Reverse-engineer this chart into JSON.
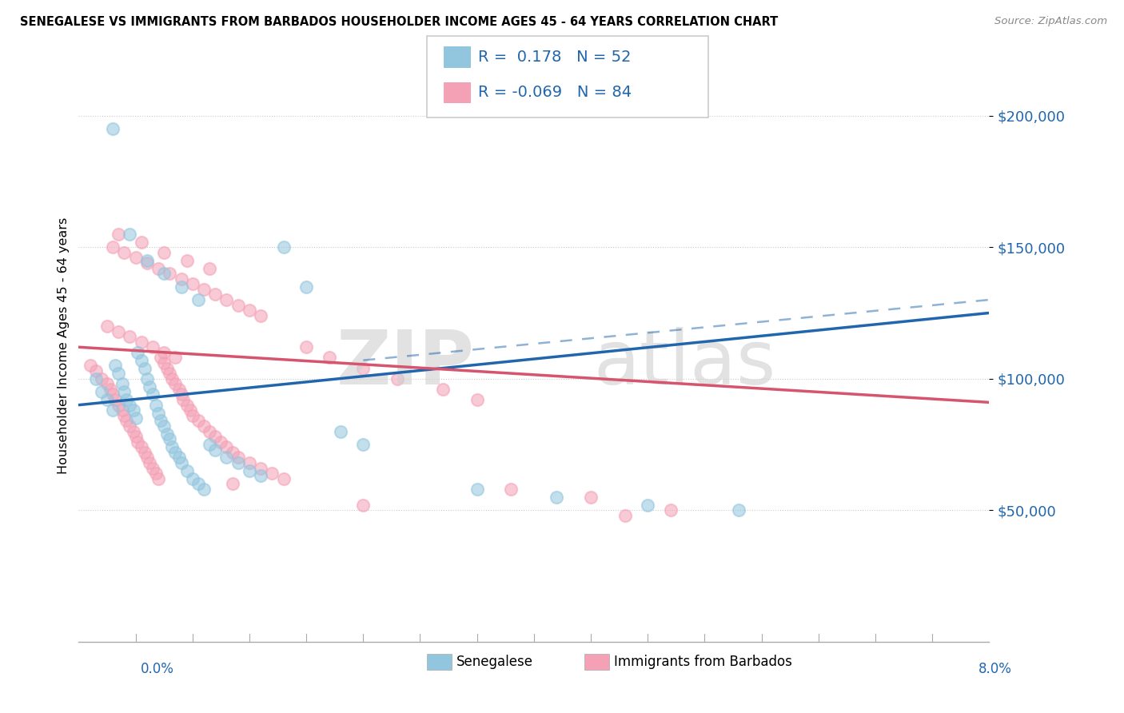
{
  "title": "SENEGALESE VS IMMIGRANTS FROM BARBADOS HOUSEHOLDER INCOME AGES 45 - 64 YEARS CORRELATION CHART",
  "source": "Source: ZipAtlas.com",
  "ylabel": "Householder Income Ages 45 - 64 years",
  "xlim": [
    0.0,
    8.0
  ],
  "ylim": [
    0,
    225000
  ],
  "yticks": [
    50000,
    100000,
    150000,
    200000
  ],
  "ytick_labels": [
    "$50,000",
    "$100,000",
    "$150,000",
    "$200,000"
  ],
  "color_blue": "#92c5de",
  "color_pink": "#f4a0b5",
  "color_blue_line": "#2166ac",
  "color_pink_line": "#d6546e",
  "color_text_blue": "#2166ac",
  "color_grid": "#cccccc",
  "R1": 0.178,
  "N1": 52,
  "R2": -0.069,
  "N2": 84,
  "sen_line_x0": 0.0,
  "sen_line_y0": 90000,
  "sen_line_x1": 8.0,
  "sen_line_y1": 125000,
  "bar_line_x0": 0.0,
  "bar_line_y0": 112000,
  "bar_line_x1": 8.0,
  "bar_line_y1": 91000,
  "sen_x": [
    0.15,
    0.2,
    0.25,
    0.3,
    0.32,
    0.35,
    0.38,
    0.4,
    0.42,
    0.45,
    0.48,
    0.5,
    0.52,
    0.55,
    0.58,
    0.6,
    0.62,
    0.65,
    0.68,
    0.7,
    0.72,
    0.75,
    0.78,
    0.8,
    0.82,
    0.85,
    0.88,
    0.9,
    0.95,
    1.0,
    1.05,
    1.1,
    1.15,
    1.2,
    1.3,
    1.4,
    1.5,
    1.6,
    1.8,
    2.0,
    2.3,
    2.5,
    3.5,
    4.2,
    5.0,
    5.8,
    0.3,
    0.45,
    0.6,
    0.75,
    0.9,
    1.05
  ],
  "sen_y": [
    100000,
    95000,
    92000,
    88000,
    105000,
    102000,
    98000,
    95000,
    92000,
    90000,
    88000,
    85000,
    110000,
    107000,
    104000,
    100000,
    97000,
    94000,
    90000,
    87000,
    84000,
    82000,
    79000,
    77000,
    74000,
    72000,
    70000,
    68000,
    65000,
    62000,
    60000,
    58000,
    75000,
    73000,
    70000,
    68000,
    65000,
    63000,
    150000,
    135000,
    80000,
    75000,
    58000,
    55000,
    52000,
    50000,
    195000,
    155000,
    145000,
    140000,
    135000,
    130000
  ],
  "bar_x": [
    0.1,
    0.15,
    0.2,
    0.25,
    0.28,
    0.3,
    0.32,
    0.35,
    0.38,
    0.4,
    0.42,
    0.45,
    0.48,
    0.5,
    0.52,
    0.55,
    0.58,
    0.6,
    0.62,
    0.65,
    0.68,
    0.7,
    0.72,
    0.75,
    0.78,
    0.8,
    0.82,
    0.85,
    0.88,
    0.9,
    0.92,
    0.95,
    0.98,
    1.0,
    1.05,
    1.1,
    1.15,
    1.2,
    1.25,
    1.3,
    1.35,
    1.4,
    1.5,
    1.6,
    1.7,
    1.8,
    2.0,
    2.2,
    2.5,
    2.8,
    3.2,
    3.5,
    0.3,
    0.4,
    0.5,
    0.6,
    0.7,
    0.8,
    0.9,
    1.0,
    1.1,
    1.2,
    1.3,
    1.4,
    1.5,
    1.6,
    0.35,
    0.55,
    0.75,
    0.95,
    1.15,
    1.35,
    3.8,
    4.5,
    2.5,
    5.2,
    4.8,
    0.25,
    0.35,
    0.45,
    0.55,
    0.65,
    0.75,
    0.85
  ],
  "bar_y": [
    105000,
    103000,
    100000,
    98000,
    96000,
    94000,
    92000,
    90000,
    88000,
    86000,
    84000,
    82000,
    80000,
    78000,
    76000,
    74000,
    72000,
    70000,
    68000,
    66000,
    64000,
    62000,
    108000,
    106000,
    104000,
    102000,
    100000,
    98000,
    96000,
    94000,
    92000,
    90000,
    88000,
    86000,
    84000,
    82000,
    80000,
    78000,
    76000,
    74000,
    72000,
    70000,
    68000,
    66000,
    64000,
    62000,
    112000,
    108000,
    104000,
    100000,
    96000,
    92000,
    150000,
    148000,
    146000,
    144000,
    142000,
    140000,
    138000,
    136000,
    134000,
    132000,
    130000,
    128000,
    126000,
    124000,
    155000,
    152000,
    148000,
    145000,
    142000,
    60000,
    58000,
    55000,
    52000,
    50000,
    48000,
    120000,
    118000,
    116000,
    114000,
    112000,
    110000,
    108000
  ]
}
